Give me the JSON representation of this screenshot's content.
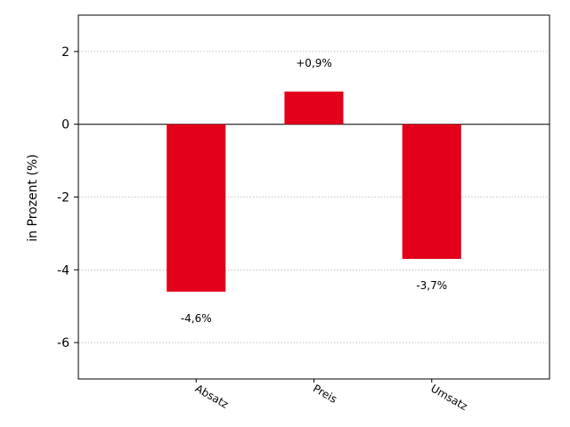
{
  "chart_data": {
    "type": "bar",
    "categories": [
      "Absatz",
      "Preis",
      "Umsatz"
    ],
    "values": [
      -4.6,
      0.9,
      -3.7
    ],
    "data_labels": [
      "-4,6%",
      "+0,9%",
      "-3,7%"
    ],
    "title": "",
    "xlabel": "",
    "ylabel": "in Prozent (%)",
    "ylim": [
      -7,
      3
    ],
    "xlim": [
      -1,
      3
    ],
    "yticks": [
      2,
      0,
      -2,
      -4,
      -6
    ],
    "ytick_labels": [
      "2",
      "0",
      "-2",
      "-4",
      "-6"
    ],
    "grid": "horizontal dotted",
    "zero_line": true,
    "bar_color": "#e2001a",
    "legend": "none"
  }
}
